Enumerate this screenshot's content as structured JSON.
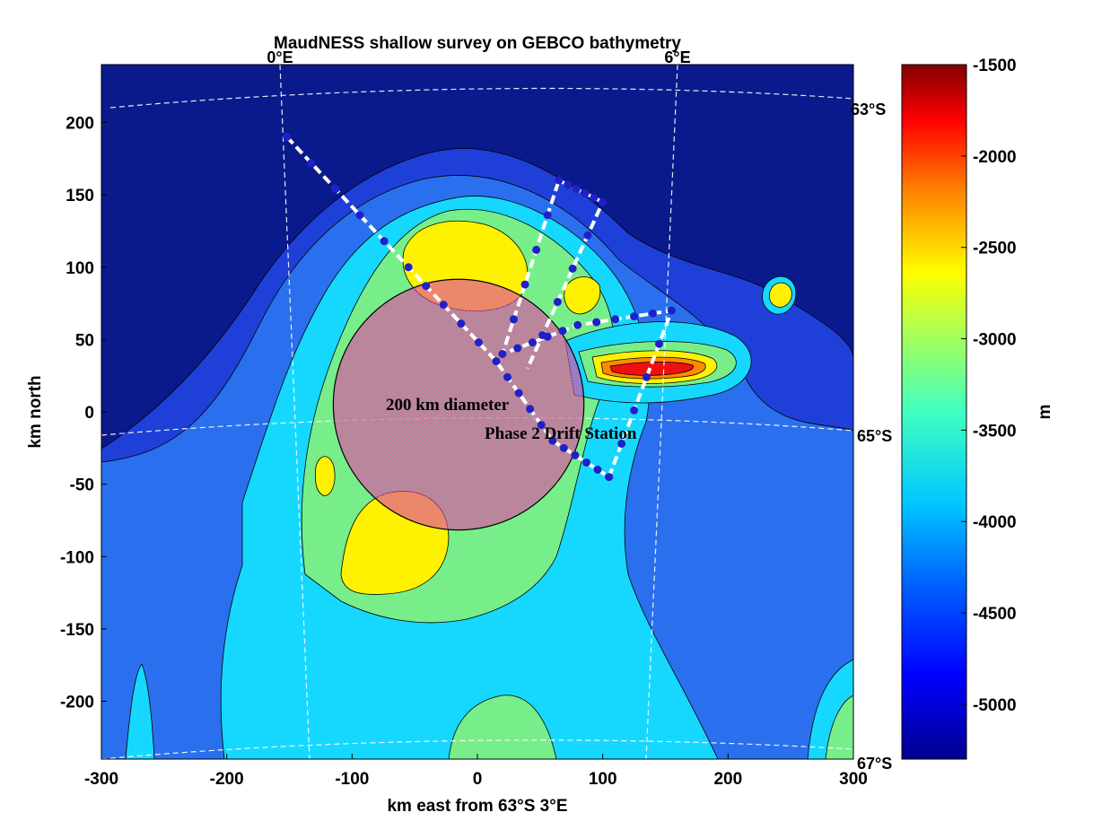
{
  "title": "MaudNESS shallow survey on GEBCO bathymetry",
  "xlabel": "km east from 63°S 3°E",
  "ylabel": "km north",
  "colorbar_label": "m",
  "x_ticks": [
    "-300",
    "-200",
    "-100",
    "0",
    "100",
    "200",
    "300"
  ],
  "y_ticks": [
    "200",
    "150",
    "100",
    "50",
    "0",
    "-50",
    "-100",
    "-150",
    "-200"
  ],
  "colorbar_ticks": [
    "-1500",
    "-2000",
    "-2500",
    "-3000",
    "-3500",
    "-4000",
    "-4500",
    "-5000"
  ],
  "graticule": {
    "lon_labels": [
      "0°E",
      "6°E"
    ],
    "lat_labels": [
      "63°S",
      "65°S",
      "67°S"
    ]
  },
  "annotations": {
    "circle_label": "200 km diameter",
    "station_label": "Phase 2 Drift Station"
  },
  "colors": {
    "deep": "#0a1a8c",
    "abyssal": "#1e40d8",
    "mid_blue": "#2a70ee",
    "cyan": "#16d8ff",
    "green": "#78ee8a",
    "yellow": "#fff200",
    "orange": "#ff8a00",
    "red": "#ee1010",
    "circle_fill": "#e0409a"
  },
  "chart_data": {
    "type": "heatmap",
    "x_range_km": [
      -300,
      300
    ],
    "y_range_km": [
      -240,
      240
    ],
    "colorbar_range_m": [
      -5300,
      -1500
    ],
    "colormap": "jet",
    "survey_circle": {
      "center_km": [
        -15,
        5
      ],
      "diameter_km": 200
    },
    "survey_track_km": [
      [
        -152,
        190
      ],
      [
        -55,
        100
      ],
      [
        15,
        35
      ],
      [
        60,
        -20
      ],
      [
        105,
        -45
      ],
      [
        155,
        70
      ],
      [
        80,
        60
      ],
      [
        20,
        40
      ],
      [
        65,
        160
      ],
      [
        100,
        145
      ],
      [
        40,
        30
      ]
    ]
  }
}
